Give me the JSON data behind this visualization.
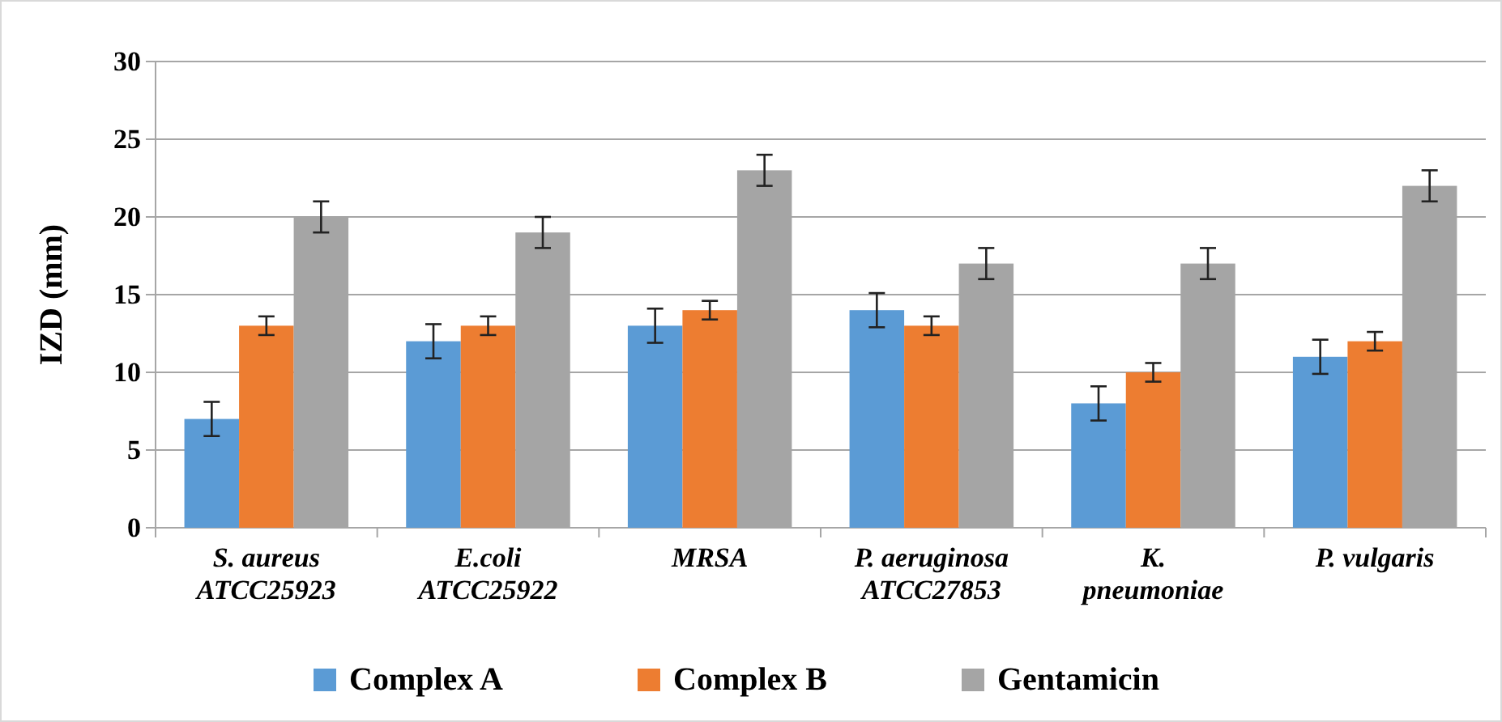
{
  "chart_data": {
    "type": "bar",
    "ylabel": "IZD (mm)",
    "categories": [
      "S. aureus\nATCC25923",
      "E.coli\nATCC25922",
      "MRSA",
      "P. aeruginosa\nATCC27853",
      "K.\npneumoniae",
      "P. vulgaris"
    ],
    "series": [
      {
        "name": "Complex A",
        "color": "#5b9bd5",
        "values": [
          7,
          12,
          13,
          14,
          8,
          11
        ],
        "errors": [
          1.1,
          1.1,
          1.1,
          1.1,
          1.1,
          1.1
        ]
      },
      {
        "name": "Complex B",
        "color": "#ed7d31",
        "values": [
          13,
          13,
          14,
          13,
          10,
          12
        ],
        "errors": [
          0.6,
          0.6,
          0.6,
          0.6,
          0.6,
          0.6
        ]
      },
      {
        "name": "Gentamicin",
        "color": "#a5a5a5",
        "values": [
          20,
          19,
          23,
          17,
          17,
          22
        ],
        "errors": [
          1,
          1,
          1,
          1,
          1,
          1
        ]
      }
    ],
    "ylim": [
      0,
      30
    ],
    "yticks": [
      0,
      5,
      10,
      15,
      20,
      25,
      30
    ],
    "grid": "y",
    "legend": "bottom"
  }
}
